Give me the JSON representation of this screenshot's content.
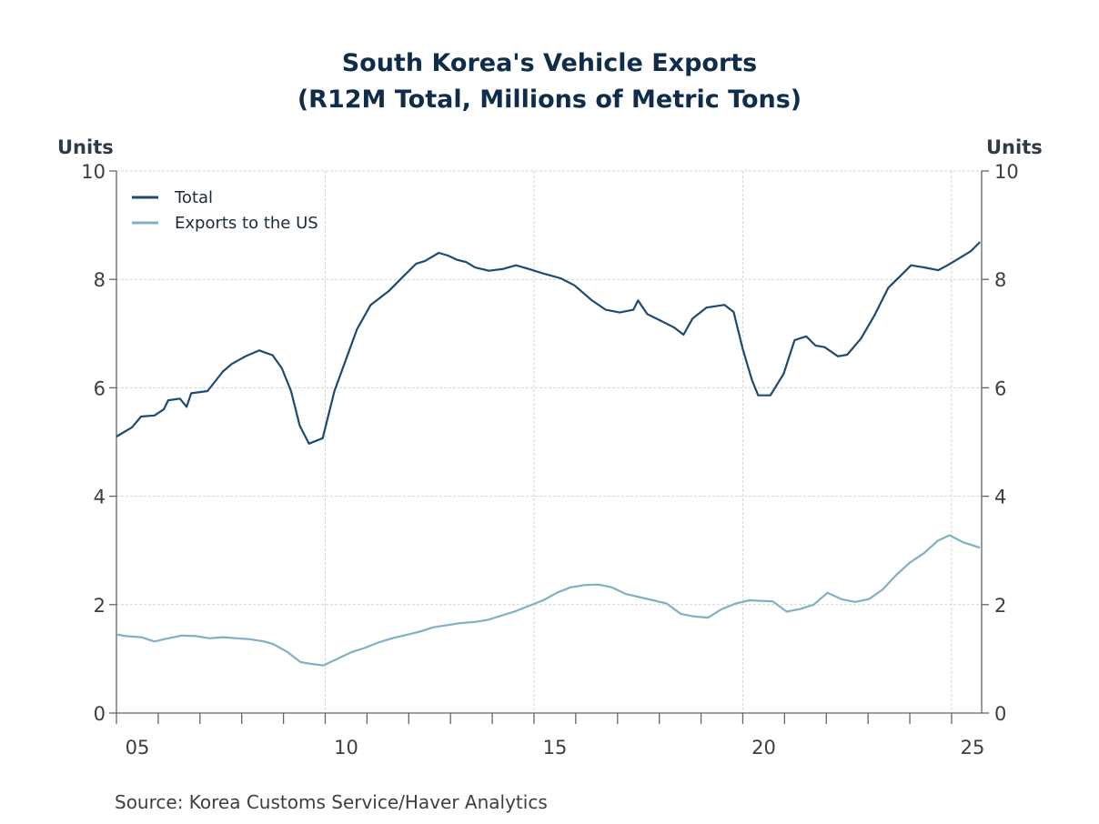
{
  "chart_data": {
    "type": "line",
    "title": "South Korea's Vehicle Exports",
    "subtitle": "(R12M Total, Millions of Metric Tons)",
    "ylabel_left": "Units",
    "ylabel_right": "Units",
    "xlabel": "",
    "ylim": [
      0,
      10
    ],
    "xlim": [
      2005.0,
      2025.72
    ],
    "y_ticks": [
      0,
      2,
      4,
      6,
      8,
      10
    ],
    "y_tick_labels": [
      "0",
      "2",
      "4",
      "6",
      "8",
      "10"
    ],
    "x_ticks": [
      2005,
      2010,
      2015,
      2020,
      2025
    ],
    "x_tick_labels": [
      "05",
      "10",
      "15",
      "20",
      "25"
    ],
    "x_minor_ticks": [
      2006,
      2007,
      2008,
      2009,
      2011,
      2012,
      2013,
      2014,
      2016,
      2017,
      2018,
      2019,
      2021,
      2022,
      2023,
      2024
    ],
    "grid": true,
    "legend_position": "top-left",
    "colors": {
      "Total": "#1d4a73",
      "Exports to the US": "#7fb0c4"
    },
    "series": [
      {
        "name": "Total",
        "x": [
          2005.0,
          2005.37,
          2005.59,
          2005.91,
          2006.13,
          2006.24,
          2006.52,
          2006.68,
          2006.79,
          2007.18,
          2007.55,
          2007.76,
          2008.09,
          2008.42,
          2008.74,
          2008.96,
          2009.18,
          2009.39,
          2009.61,
          2009.94,
          2010.22,
          2010.76,
          2011.09,
          2011.53,
          2011.85,
          2012.18,
          2012.39,
          2012.72,
          2012.94,
          2013.16,
          2013.37,
          2013.59,
          2013.92,
          2014.24,
          2014.57,
          2014.89,
          2015.21,
          2015.64,
          2015.97,
          2016.39,
          2016.72,
          2017.05,
          2017.38,
          2017.49,
          2017.71,
          2018.03,
          2018.36,
          2018.58,
          2018.8,
          2019.13,
          2019.56,
          2019.78,
          2020.0,
          2020.22,
          2020.37,
          2020.66,
          2020.98,
          2021.24,
          2021.52,
          2021.74,
          2021.96,
          2022.28,
          2022.5,
          2022.83,
          2023.15,
          2023.48,
          2023.81,
          2024.03,
          2024.35,
          2024.68,
          2024.9,
          2025.12,
          2025.46,
          2025.68
        ],
        "values": [
          5.1,
          5.27,
          5.47,
          5.49,
          5.6,
          5.77,
          5.8,
          5.65,
          5.9,
          5.94,
          6.3,
          6.44,
          6.58,
          6.69,
          6.6,
          6.36,
          5.94,
          5.3,
          4.97,
          5.07,
          5.94,
          7.08,
          7.53,
          7.79,
          8.04,
          8.29,
          8.34,
          8.49,
          8.44,
          8.36,
          8.32,
          8.22,
          8.16,
          8.19,
          8.26,
          8.19,
          8.11,
          8.02,
          7.89,
          7.61,
          7.44,
          7.39,
          7.44,
          7.61,
          7.36,
          7.24,
          7.11,
          6.98,
          7.28,
          7.48,
          7.53,
          7.4,
          6.71,
          6.14,
          5.86,
          5.86,
          6.26,
          6.88,
          6.95,
          6.78,
          6.75,
          6.58,
          6.61,
          6.91,
          7.33,
          7.84,
          8.09,
          8.26,
          8.22,
          8.17,
          8.26,
          8.36,
          8.52,
          8.69
        ]
      },
      {
        "name": "Exports to the US",
        "x": [
          2005.0,
          2005.22,
          2005.59,
          2005.91,
          2006.24,
          2006.57,
          2006.9,
          2007.23,
          2007.55,
          2007.88,
          2008.21,
          2008.54,
          2008.76,
          2009.09,
          2009.41,
          2009.74,
          2009.96,
          2010.29,
          2010.62,
          2010.94,
          2011.27,
          2011.6,
          2011.93,
          2012.26,
          2012.58,
          2012.91,
          2013.24,
          2013.57,
          2013.9,
          2014.23,
          2014.56,
          2014.89,
          2015.22,
          2015.55,
          2015.88,
          2016.21,
          2016.54,
          2016.86,
          2017.19,
          2017.52,
          2017.85,
          2018.18,
          2018.51,
          2018.84,
          2019.17,
          2019.5,
          2019.83,
          2020.16,
          2020.4,
          2020.72,
          2021.05,
          2021.38,
          2021.7,
          2022.03,
          2022.36,
          2022.69,
          2023.02,
          2023.35,
          2023.68,
          2024.01,
          2024.34,
          2024.67,
          2024.95,
          2025.28,
          2025.68
        ],
        "values": [
          1.45,
          1.42,
          1.4,
          1.32,
          1.38,
          1.43,
          1.42,
          1.38,
          1.4,
          1.38,
          1.36,
          1.32,
          1.27,
          1.13,
          0.94,
          0.9,
          0.88,
          1.0,
          1.12,
          1.2,
          1.3,
          1.38,
          1.44,
          1.5,
          1.58,
          1.62,
          1.66,
          1.68,
          1.72,
          1.8,
          1.88,
          1.98,
          2.08,
          2.22,
          2.32,
          2.36,
          2.37,
          2.32,
          2.2,
          2.14,
          2.08,
          2.02,
          1.83,
          1.78,
          1.76,
          1.92,
          2.02,
          2.08,
          2.07,
          2.06,
          1.87,
          1.92,
          2.0,
          2.22,
          2.1,
          2.05,
          2.1,
          2.28,
          2.55,
          2.78,
          2.95,
          3.18,
          3.28,
          3.15,
          3.05
        ]
      }
    ]
  },
  "source": "Source:  Korea Customs Service/Haver Analytics"
}
